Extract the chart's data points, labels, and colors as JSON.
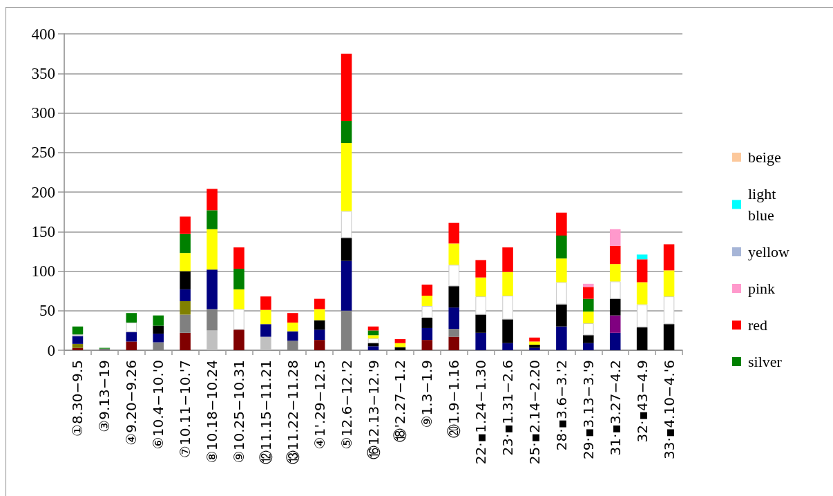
{
  "chart_data": {
    "type": "bar",
    "stacked": true,
    "categories": [
      "①8.30−9.5",
      "③9.13−19",
      "④9.20−9.26",
      "⑥10.4−10.'0",
      "⑦10.11−10.'7",
      "⑧10.18−10.24",
      "⑨10.25−10.31",
      "⑫11.15−11.21",
      "⑬11.22−11.28",
      "④1'.29−12.5",
      "⑤12.6−12.'2",
      "⑯12.13−12.'9",
      "⑱'2.27−1.2",
      "⑨1.3−1.9",
      "⑳1.9−1.16",
      "22·▪1.24−1.30",
      "23·▪1.31−2.6",
      "25·▪2.14−2.20",
      "28·▪3.6−3.'2",
      "29·▪3.13−3.'9",
      "31·▪3.27−4.2",
      "32·▪43−4.9",
      "33·▪4.10−4.'6"
    ],
    "series": [
      {
        "color": "#800000",
        "values": [
          3,
          null,
          11,
          null,
          22,
          null,
          26,
          null,
          null,
          13,
          null,
          null,
          null,
          13,
          17,
          null,
          null,
          null,
          null,
          null,
          null,
          null,
          null
        ]
      },
      {
        "color": "#c0c0c0",
        "values": [
          null,
          null,
          null,
          null,
          null,
          25,
          null,
          17,
          null,
          null,
          null,
          null,
          null,
          null,
          null,
          null,
          null,
          null,
          null,
          null,
          null,
          null,
          null
        ]
      },
      {
        "color": "#808080",
        "values": [
          null,
          null,
          null,
          10,
          23,
          27,
          null,
          null,
          12,
          null,
          50,
          null,
          null,
          null,
          10,
          null,
          null,
          null,
          null,
          null,
          null,
          null,
          null
        ]
      },
      {
        "color": "#808000",
        "values": [
          5,
          null,
          null,
          null,
          17,
          null,
          null,
          null,
          null,
          null,
          null,
          null,
          null,
          null,
          null,
          null,
          null,
          null,
          null,
          null,
          null,
          null,
          null
        ]
      },
      {
        "color": "#000080",
        "values": [
          10,
          null,
          12,
          11,
          15,
          50,
          null,
          16,
          12,
          13,
          63,
          5,
          null,
          15,
          27,
          22,
          9,
          3,
          30,
          9,
          22,
          null,
          null
        ]
      },
      {
        "color": "#800080",
        "values": [
          null,
          null,
          null,
          null,
          null,
          null,
          null,
          null,
          null,
          null,
          null,
          null,
          null,
          null,
          null,
          null,
          null,
          null,
          null,
          null,
          22,
          null,
          null
        ]
      },
      {
        "color": "#000000",
        "values": [
          null,
          1,
          null,
          10,
          23,
          null,
          null,
          null,
          null,
          12,
          29,
          4,
          4,
          13,
          27,
          23,
          30,
          4,
          28,
          10,
          21,
          29,
          33
        ]
      },
      {
        "color": "#ffffff",
        "values": [
          2,
          1,
          12,
          null,
          null,
          null,
          26,
          null,
          null,
          null,
          34,
          6,
          null,
          15,
          27,
          23,
          30,
          null,
          28,
          15,
          22,
          29,
          35
        ]
      },
      {
        "color": "#ffff00",
        "values": [
          null,
          null,
          null,
          null,
          23,
          51,
          25,
          18,
          11,
          14,
          86,
          4,
          5,
          13,
          27,
          24,
          30,
          4,
          30,
          15,
          22,
          28,
          33
        ]
      },
      {
        "name": "silver",
        "color": "#008000",
        "values": [
          10,
          1,
          12,
          13,
          24,
          24,
          26,
          null,
          null,
          null,
          28,
          6,
          null,
          null,
          null,
          null,
          null,
          null,
          29,
          16,
          null,
          null,
          null
        ]
      },
      {
        "name": "red",
        "color": "#ff0000",
        "values": [
          null,
          null,
          null,
          null,
          22,
          27,
          27,
          17,
          12,
          13,
          85,
          5,
          5,
          14,
          26,
          22,
          31,
          5,
          29,
          15,
          23,
          29,
          33
        ]
      },
      {
        "name": "pink",
        "color": "#ff99cc",
        "values": [
          null,
          null,
          null,
          null,
          null,
          null,
          null,
          null,
          null,
          null,
          null,
          null,
          null,
          null,
          null,
          null,
          null,
          null,
          null,
          4,
          21,
          null,
          null
        ]
      },
      {
        "name": "yellow",
        "color": "#a6b5d7",
        "values": [
          null,
          null,
          null,
          null,
          null,
          null,
          null,
          null,
          null,
          null,
          null,
          null,
          null,
          null,
          null,
          null,
          null,
          null,
          null,
          null,
          null,
          null,
          null
        ]
      },
      {
        "name": "light blue",
        "color": "#00ffff",
        "values": [
          null,
          null,
          null,
          null,
          null,
          null,
          null,
          null,
          null,
          null,
          null,
          null,
          null,
          null,
          null,
          null,
          null,
          null,
          null,
          null,
          null,
          6,
          null
        ]
      },
      {
        "name": "beige",
        "color": "#fcc89b",
        "values": [
          null,
          null,
          null,
          null,
          null,
          null,
          null,
          null,
          null,
          null,
          null,
          null,
          null,
          null,
          null,
          null,
          null,
          null,
          null,
          null,
          null,
          null,
          null
        ]
      }
    ],
    "ylim": [
      0,
      400
    ],
    "yticks": [
      0,
      50,
      100,
      150,
      200,
      250,
      300,
      350,
      400
    ],
    "grid": "y",
    "legend": "right"
  }
}
